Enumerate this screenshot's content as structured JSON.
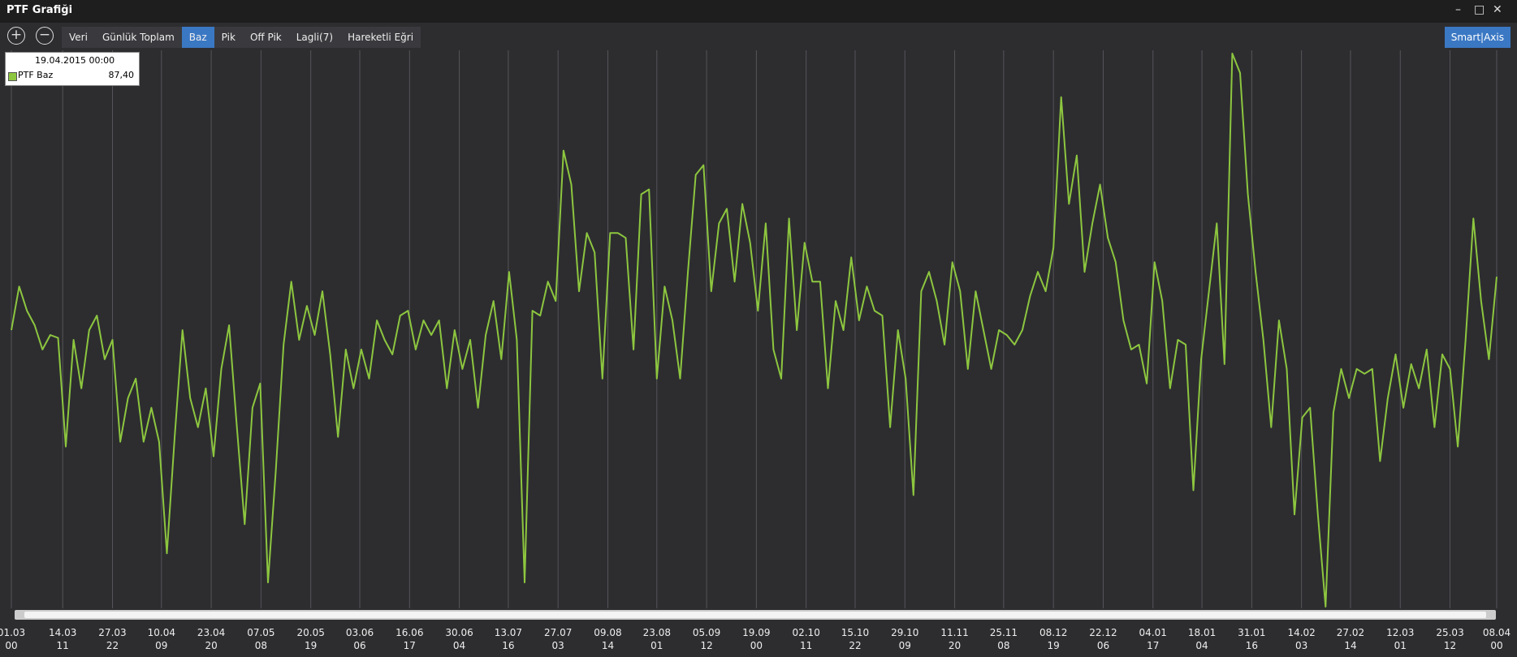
{
  "window": {
    "title": "PTF Grafiği"
  },
  "toolbar": {
    "buttons": [
      "Veri",
      "Günlük Toplam",
      "Baz",
      "Pik",
      "Off Pik",
      "Lagli(7)",
      "Hareketli Eğri"
    ],
    "selected": 2,
    "right_button": "Smart|Axis"
  },
  "tooltip": {
    "date": "19.04.2015 00:00",
    "value": "87,40"
  },
  "chart_data": {
    "type": "line",
    "series": [
      {
        "name": "PTF Baz",
        "color": "#8dc63f",
        "values": [
          290,
          335,
          310,
          295,
          270,
          285,
          282,
          170,
          280,
          230,
          290,
          305,
          260,
          280,
          175,
          220,
          240,
          175,
          210,
          175,
          60,
          180,
          290,
          220,
          190,
          230,
          160,
          250,
          295,
          190,
          90,
          210,
          235,
          30,
          145,
          275,
          340,
          280,
          315,
          285,
          330,
          265,
          180,
          270,
          230,
          270,
          240,
          300,
          280,
          265,
          305,
          310,
          270,
          300,
          285,
          300,
          230,
          290,
          250,
          280,
          210,
          285,
          320,
          260,
          350,
          280,
          30,
          310,
          305,
          340,
          320,
          475,
          440,
          330,
          390,
          370,
          240,
          390,
          390,
          385,
          270,
          430,
          435,
          240,
          335,
          300,
          240,
          350,
          450,
          460,
          330,
          400,
          415,
          340,
          420,
          380,
          310,
          400,
          270,
          240,
          405,
          290,
          380,
          340,
          340,
          230,
          320,
          290,
          365,
          300,
          335,
          310,
          305,
          190,
          290,
          240,
          120,
          330,
          350,
          320,
          275,
          360,
          330,
          250,
          330,
          290,
          250,
          290,
          285,
          275,
          290,
          325,
          350,
          330,
          375,
          530,
          420,
          470,
          350,
          400,
          440,
          385,
          360,
          300,
          270,
          275,
          235,
          360,
          320,
          230,
          280,
          275,
          125,
          260,
          330,
          400,
          255,
          575,
          555,
          430,
          350,
          280,
          190,
          300,
          250,
          100,
          200,
          210,
          100,
          5,
          205,
          250,
          220,
          250,
          245,
          250,
          155,
          220,
          265,
          210,
          255,
          230,
          270,
          190,
          265,
          250,
          170,
          280,
          405,
          320,
          260,
          345
        ]
      }
    ],
    "xlim": [
      0,
      191
    ],
    "ylim": [
      0,
      580
    ],
    "grid": true,
    "xticks": [
      {
        "value": 0,
        "label": "01.03\n00"
      },
      {
        "value": 6.6,
        "label": "14.03\n11"
      },
      {
        "value": 13.0,
        "label": "27.03\n22"
      },
      {
        "value": 19.3,
        "label": "10.04\n09"
      },
      {
        "value": 25.7,
        "label": "23.04\n20"
      },
      {
        "value": 32.1,
        "label": "07.05\n08"
      },
      {
        "value": 38.5,
        "label": "20.05\n19"
      },
      {
        "value": 44.8,
        "label": "03.06\n06"
      },
      {
        "value": 51.2,
        "label": "16.06\n17"
      },
      {
        "value": 57.6,
        "label": "30.06\n04"
      },
      {
        "value": 63.9,
        "label": "13.07\n16"
      },
      {
        "value": 70.3,
        "label": "27.07\n03"
      },
      {
        "value": 76.7,
        "label": "09.08\n14"
      },
      {
        "value": 83.0,
        "label": "23.08\n01"
      },
      {
        "value": 89.4,
        "label": "05.09\n12"
      },
      {
        "value": 95.8,
        "label": "19.09\n00"
      },
      {
        "value": 102.2,
        "label": "02.10\n11"
      },
      {
        "value": 108.5,
        "label": "15.10\n22"
      },
      {
        "value": 114.9,
        "label": "29.10\n09"
      },
      {
        "value": 121.3,
        "label": "11.11\n20"
      },
      {
        "value": 127.6,
        "label": "25.11\n08"
      },
      {
        "value": 134.0,
        "label": "08.12\n19"
      },
      {
        "value": 140.4,
        "label": "22.12\n06"
      },
      {
        "value": 146.8,
        "label": "04.01\n17"
      },
      {
        "value": 153.1,
        "label": "18.01\n04"
      },
      {
        "value": 159.5,
        "label": "31.01\n16"
      },
      {
        "value": 165.9,
        "label": "14.02\n03"
      },
      {
        "value": 172.2,
        "label": "27.02\n14"
      },
      {
        "value": 178.6,
        "label": "12.03\n01"
      },
      {
        "value": 185.0,
        "label": "25.03\n12"
      },
      {
        "value": 191,
        "label": "08.04\n00"
      }
    ]
  }
}
